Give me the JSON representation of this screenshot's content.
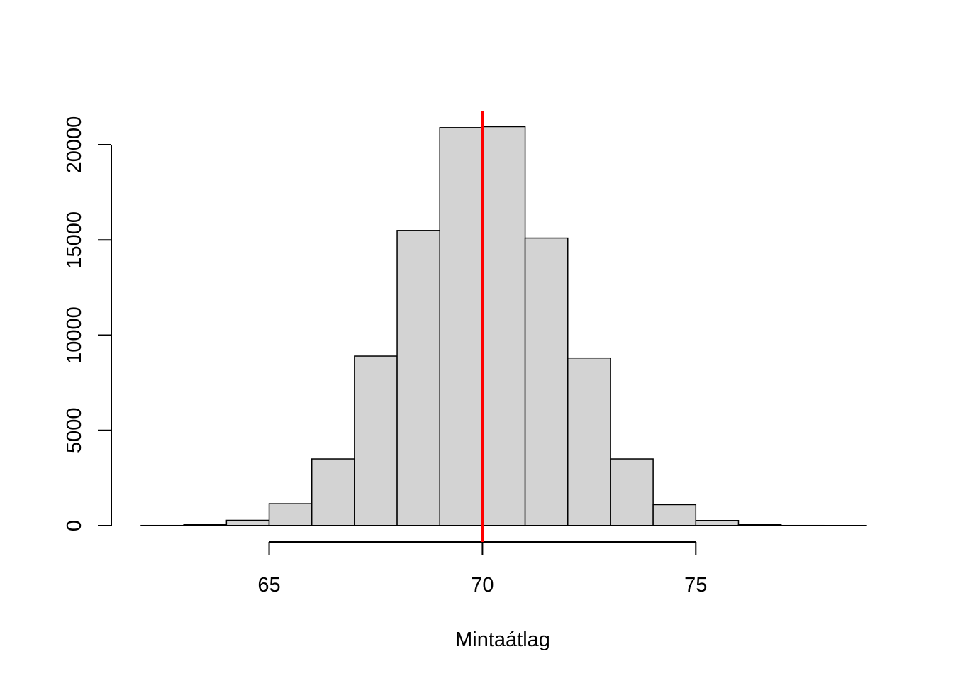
{
  "chart_data": {
    "type": "bar",
    "title": "",
    "xlabel": "Mintaátlag",
    "ylabel": "",
    "bins": [
      {
        "start": 62,
        "end": 63,
        "count": 10
      },
      {
        "start": 63,
        "end": 64,
        "count": 50
      },
      {
        "start": 64,
        "end": 65,
        "count": 280
      },
      {
        "start": 65,
        "end": 66,
        "count": 1150
      },
      {
        "start": 66,
        "end": 67,
        "count": 3500
      },
      {
        "start": 67,
        "end": 68,
        "count": 8900
      },
      {
        "start": 68,
        "end": 69,
        "count": 15500
      },
      {
        "start": 69,
        "end": 70,
        "count": 20900
      },
      {
        "start": 70,
        "end": 71,
        "count": 20950
      },
      {
        "start": 71,
        "end": 72,
        "count": 15100
      },
      {
        "start": 72,
        "end": 73,
        "count": 8800
      },
      {
        "start": 73,
        "end": 74,
        "count": 3500
      },
      {
        "start": 74,
        "end": 75,
        "count": 1100
      },
      {
        "start": 75,
        "end": 76,
        "count": 270
      },
      {
        "start": 76,
        "end": 77,
        "count": 50
      },
      {
        "start": 77,
        "end": 78,
        "count": 10
      },
      {
        "start": 78,
        "end": 79,
        "count": 5
      }
    ],
    "xticks": [
      65,
      70,
      75
    ],
    "yticks": [
      0,
      5000,
      10000,
      15000,
      20000
    ],
    "xlim": [
      62,
      79
    ],
    "ylim": [
      0,
      21700
    ],
    "vline": {
      "x": 70,
      "color": "#ff0000"
    },
    "bar_fill": "#d3d3d3",
    "bar_stroke": "#000000",
    "grid": false,
    "legend": "none"
  }
}
